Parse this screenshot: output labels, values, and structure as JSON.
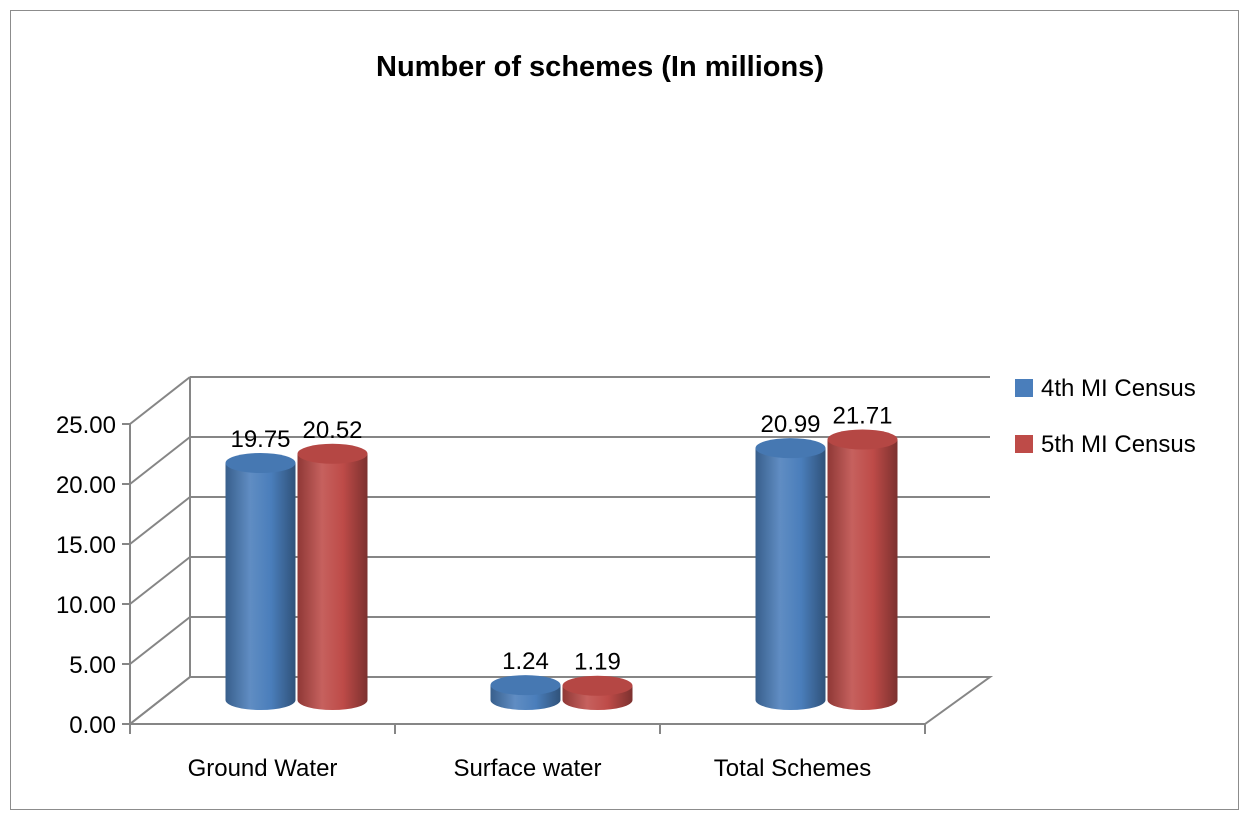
{
  "chart_data": {
    "type": "bar",
    "title": "Number of schemes (In millions)",
    "categories": [
      "Ground Water",
      "Surface water",
      "Total Schemes"
    ],
    "series": [
      {
        "name": "4th MI Census",
        "values": [
          19.75,
          1.24,
          20.99
        ],
        "labels": [
          "19.75",
          "1.24",
          "20.99"
        ],
        "color": "#4a7ebb"
      },
      {
        "name": "5th MI Census",
        "values": [
          20.52,
          1.19,
          21.71
        ],
        "labels": [
          "20.52",
          "1.19",
          "21.71"
        ],
        "color": "#be4b48"
      }
    ],
    "yticks": [
      "0.00",
      "5.00",
      "10.00",
      "15.00",
      "20.00",
      "25.00"
    ],
    "ylim": [
      0,
      25
    ],
    "xlabel": "",
    "ylabel": "",
    "grid": true,
    "legend": "right",
    "style": "3d-cylinder"
  }
}
